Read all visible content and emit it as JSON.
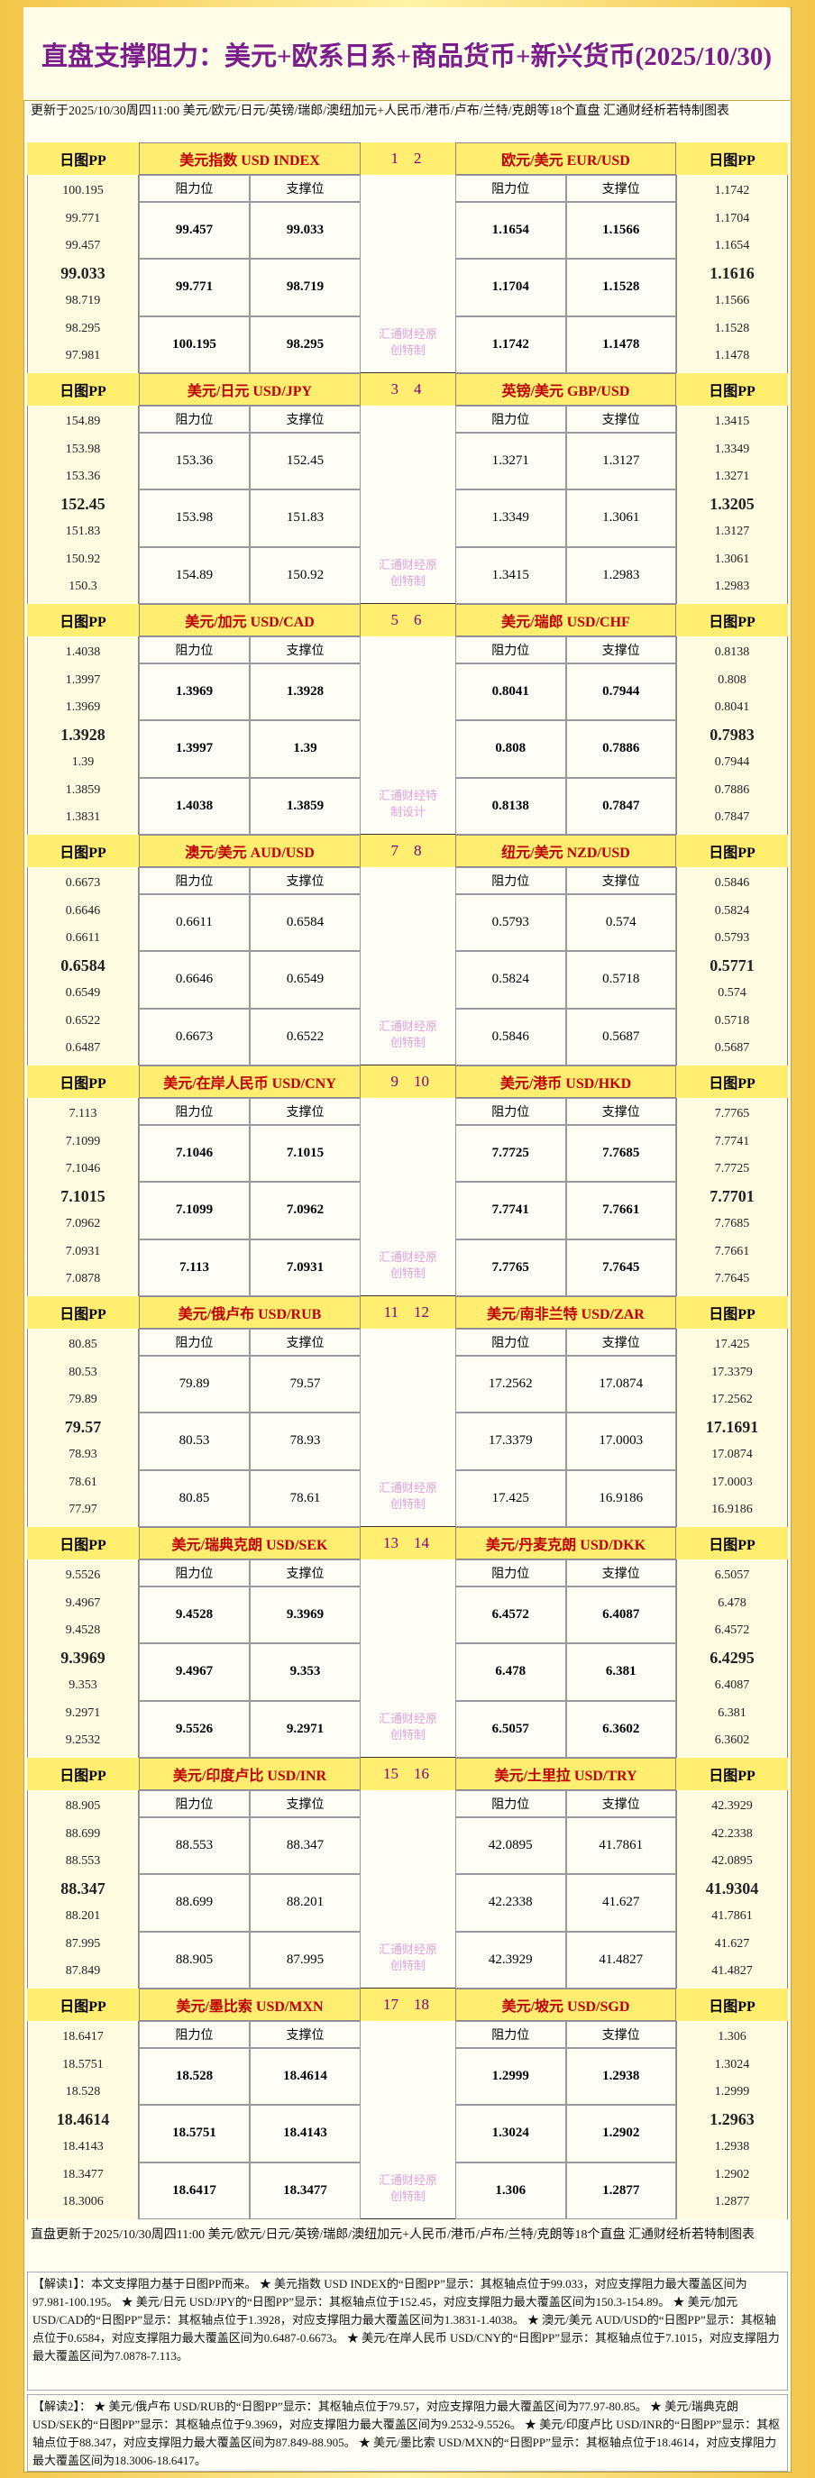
{
  "header": {
    "title": "直盘支撑阻力：美元+欧系日系+商品货币+新兴货币(2025/10/30)",
    "subtitle": "更新于2025/10/30周四11:00 美元/欧元/日元/英镑/瑞郎/澳纽加元+人民币/港币/卢布/兰特/克朗等18个直盘 汇通财经析若特制图表"
  },
  "labels": {
    "pp": "日图PP",
    "resistance": "阻力位",
    "support": "支撑位"
  },
  "blocks": [
    {
      "left": {
        "title": "美元指数 USD INDEX",
        "num": "1",
        "list": [
          100.195,
          99.771,
          99.457,
          99.033,
          98.719,
          98.295,
          97.981
        ],
        "rows": [
          [
            99.457,
            99.033
          ],
          [
            99.771,
            98.719
          ],
          [
            100.195,
            98.295
          ]
        ]
      },
      "watermark": "汇通财经原创特制",
      "right": {
        "title": "欧元/美元 EUR/USD",
        "num": "2",
        "list": [
          1.1742,
          1.1704,
          1.1654,
          1.1616,
          1.1566,
          1.1528,
          1.1478
        ],
        "rows": [
          [
            1.1654,
            1.1566
          ],
          [
            1.1704,
            1.1528
          ],
          [
            1.1742,
            1.1478
          ]
        ]
      }
    },
    {
      "left": {
        "title": "美元/日元 USD/JPY",
        "num": "3",
        "list": [
          154.89,
          153.98,
          153.36,
          152.45,
          151.83,
          150.92,
          150.3
        ],
        "rows": [
          [
            153.36,
            152.45
          ],
          [
            153.98,
            151.83
          ],
          [
            154.89,
            150.92
          ]
        ]
      },
      "watermark": "汇通财经原创特制",
      "right": {
        "title": "英镑/美元 GBP/USD",
        "num": "4",
        "list": [
          1.3415,
          1.3349,
          1.3271,
          1.3205,
          1.3127,
          1.3061,
          1.2983
        ],
        "rows": [
          [
            1.3271,
            1.3127
          ],
          [
            1.3349,
            1.3061
          ],
          [
            1.3415,
            1.2983
          ]
        ]
      }
    },
    {
      "left": {
        "title": "美元/加元 USD/CAD",
        "num": "5",
        "list": [
          1.4038,
          1.3997,
          1.3969,
          1.3928,
          1.39,
          1.3859,
          1.3831
        ],
        "rows": [
          [
            1.3969,
            1.3928
          ],
          [
            1.3997,
            1.39
          ],
          [
            1.4038,
            1.3859
          ]
        ]
      },
      "watermark": "汇通财经特制设计",
      "right": {
        "title": "美元/瑞郎 USD/CHF",
        "num": "6",
        "list": [
          0.8138,
          0.808,
          0.8041,
          0.7983,
          0.7944,
          0.7886,
          0.7847
        ],
        "rows": [
          [
            0.8041,
            0.7944
          ],
          [
            0.808,
            0.7886
          ],
          [
            0.8138,
            0.7847
          ]
        ]
      }
    },
    {
      "left": {
        "title": "澳元/美元 AUD/USD",
        "num": "7",
        "list": [
          0.6673,
          0.6646,
          0.6611,
          0.6584,
          0.6549,
          0.6522,
          0.6487
        ],
        "rows": [
          [
            0.6611,
            0.6584
          ],
          [
            0.6646,
            0.6549
          ],
          [
            0.6673,
            0.6522
          ]
        ]
      },
      "watermark": "汇通财经原创特制",
      "right": {
        "title": "纽元/美元 NZD/USD",
        "num": "8",
        "list": [
          0.5846,
          0.5824,
          0.5793,
          0.5771,
          0.574,
          0.5718,
          0.5687
        ],
        "rows": [
          [
            0.5793,
            0.574
          ],
          [
            0.5824,
            0.5718
          ],
          [
            0.5846,
            0.5687
          ]
        ]
      }
    },
    {
      "left": {
        "title": "美元/在岸人民币 USD/CNY",
        "num": "9",
        "list": [
          7.113,
          7.1099,
          7.1046,
          7.1015,
          7.0962,
          7.0931,
          7.0878
        ],
        "rows": [
          [
            7.1046,
            7.1015
          ],
          [
            7.1099,
            7.0962
          ],
          [
            7.113,
            7.0931
          ]
        ]
      },
      "watermark": "汇通财经原创特制",
      "right": {
        "title": "美元/港币 USD/HKD",
        "num": "10",
        "list": [
          7.7765,
          7.7741,
          7.7725,
          7.7701,
          7.7685,
          7.7661,
          7.7645
        ],
        "rows": [
          [
            7.7725,
            7.7685
          ],
          [
            7.7741,
            7.7661
          ],
          [
            7.7765,
            7.7645
          ]
        ]
      }
    },
    {
      "left": {
        "title": "美元/俄卢布 USD/RUB",
        "num": "11",
        "list": [
          80.85,
          80.53,
          79.89,
          79.57,
          78.93,
          78.61,
          77.97
        ],
        "rows": [
          [
            79.89,
            79.57
          ],
          [
            80.53,
            78.93
          ],
          [
            80.85,
            78.61
          ]
        ]
      },
      "watermark": "汇通财经原创特制",
      "right": {
        "title": "美元/南非兰特 USD/ZAR",
        "num": "12",
        "list": [
          17.425,
          17.3379,
          17.2562,
          17.1691,
          17.0874,
          17.0003,
          16.9186
        ],
        "rows": [
          [
            17.2562,
            17.0874
          ],
          [
            17.3379,
            17.0003
          ],
          [
            17.425,
            16.9186
          ]
        ]
      }
    },
    {
      "left": {
        "title": "美元/瑞典克朗 USD/SEK",
        "num": "13",
        "list": [
          9.5526,
          9.4967,
          9.4528,
          9.3969,
          9.353,
          9.2971,
          9.2532
        ],
        "rows": [
          [
            9.4528,
            9.3969
          ],
          [
            9.4967,
            9.353
          ],
          [
            9.5526,
            9.2971
          ]
        ]
      },
      "watermark": "汇通财经原创特制",
      "right": {
        "title": "美元/丹麦克朗 USD/DKK",
        "num": "14",
        "list": [
          6.5057,
          6.478,
          6.4572,
          6.4295,
          6.4087,
          6.381,
          6.3602
        ],
        "rows": [
          [
            6.4572,
            6.4087
          ],
          [
            6.478,
            6.381
          ],
          [
            6.5057,
            6.3602
          ]
        ]
      }
    },
    {
      "left": {
        "title": "美元/印度卢比 USD/INR",
        "num": "15",
        "list": [
          88.905,
          88.699,
          88.553,
          88.347,
          88.201,
          87.995,
          87.849
        ],
        "rows": [
          [
            88.553,
            88.347
          ],
          [
            88.699,
            88.201
          ],
          [
            88.905,
            87.995
          ]
        ]
      },
      "watermark": "汇通财经原创特制",
      "right": {
        "title": "美元/土里拉 USD/TRY",
        "num": "16",
        "list": [
          42.3929,
          42.2338,
          42.0895,
          41.9304,
          41.7861,
          41.627,
          41.4827
        ],
        "rows": [
          [
            42.0895,
            41.7861
          ],
          [
            42.2338,
            41.627
          ],
          [
            42.3929,
            41.4827
          ]
        ]
      }
    },
    {
      "left": {
        "title": "美元/墨比索 USD/MXN",
        "num": "17",
        "list": [
          18.6417,
          18.5751,
          18.528,
          18.4614,
          18.4143,
          18.3477,
          18.3006
        ],
        "rows": [
          [
            18.528,
            18.4614
          ],
          [
            18.5751,
            18.4143
          ],
          [
            18.6417,
            18.3477
          ]
        ]
      },
      "watermark": "汇通财经原创特制",
      "right": {
        "title": "美元/坡元 USD/SGD",
        "num": "18",
        "list": [
          1.306,
          1.3024,
          1.2999,
          1.2963,
          1.2938,
          1.2902,
          1.2877
        ],
        "rows": [
          [
            1.2999,
            1.2938
          ],
          [
            1.3024,
            1.2902
          ],
          [
            1.306,
            1.2877
          ]
        ]
      }
    }
  ],
  "footer": {
    "update": "直盘更新于2025/10/30周四11:00 美元/欧元/日元/英镑/瑞郎/澳纽加元+人民币/港币/卢布/兰特/克朗等18个直盘 汇通财经析若特制图表",
    "note1": "【解读1】：本文支撑阻力基于日图PP而来。 ★ 美元指数 USD INDEX的“日图PP”显示：其枢轴点位于99.033，对应支撑阻力最大覆盖区间为97.981-100.195。 ★ 美元/日元 USD/JPY的“日图PP”显示：其枢轴点位于152.45，对应支撑阻力最大覆盖区间为150.3-154.89。 ★ 美元/加元 USD/CAD的“日图PP”显示：其枢轴点位于1.3928，对应支撑阻力最大覆盖区间为1.3831-1.4038。 ★ 澳元/美元 AUD/USD的“日图PP”显示：其枢轴点位于0.6584，对应支撑阻力最大覆盖区间为0.6487-0.6673。 ★ 美元/在岸人民币 USD/CNY的“日图PP”显示：其枢轴点位于7.1015，对应支撑阻力最大覆盖区间为7.0878-7.113。",
    "note2": "【解读2】： ★ 美元/俄卢布 USD/RUB的“日图PP”显示：其枢轴点位于79.57，对应支撑阻力最大覆盖区间为77.97-80.85。 ★ 美元/瑞典克朗 USD/SEK的“日图PP”显示：其枢轴点位于9.3969，对应支撑阻力最大覆盖区间为9.2532-9.5526。 ★ 美元/印度卢比 USD/INR的“日图PP”显示：其枢轴点位于88.347，对应支撑阻力最大覆盖区间为87.849-88.905。 ★ 美元/墨比索 USD/MXN的“日图PP”显示：其枢轴点位于18.4614，对应支撑阻力最大覆盖区间为18.3006-18.6417。"
  }
}
